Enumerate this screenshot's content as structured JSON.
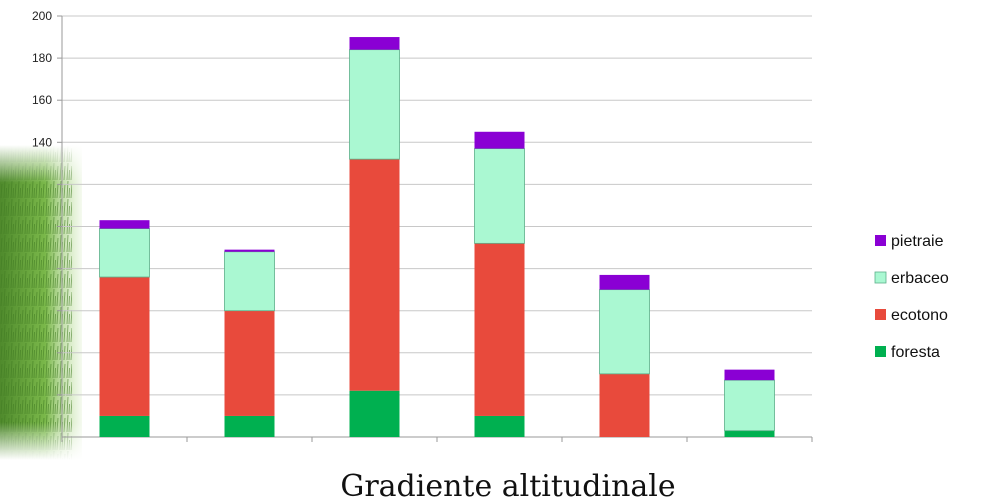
{
  "chart_data": {
    "type": "bar",
    "stacked": true,
    "categories": [
      "",
      "",
      "",
      "",
      "",
      ""
    ],
    "series": [
      {
        "name": "foresta",
        "color": "#00b050",
        "values": [
          10,
          10,
          22,
          10,
          0,
          3
        ]
      },
      {
        "name": "ecotono",
        "color": "#e84a3c",
        "values": [
          66,
          50,
          110,
          82,
          30,
          0
        ]
      },
      {
        "name": "erbaceo",
        "color": "#aaf8d2",
        "values": [
          23,
          28,
          52,
          45,
          40,
          24
        ]
      },
      {
        "name": "pietraie",
        "color": "#8a00d4",
        "values": [
          4,
          1,
          6,
          8,
          7,
          5
        ]
      }
    ],
    "ylim": [
      0,
      200
    ],
    "yticks": [
      200,
      180,
      160,
      140
    ],
    "grid": true,
    "legend_position": "right",
    "title": "",
    "xlabel": "Gradiente altitudinale",
    "ylabel": ""
  }
}
